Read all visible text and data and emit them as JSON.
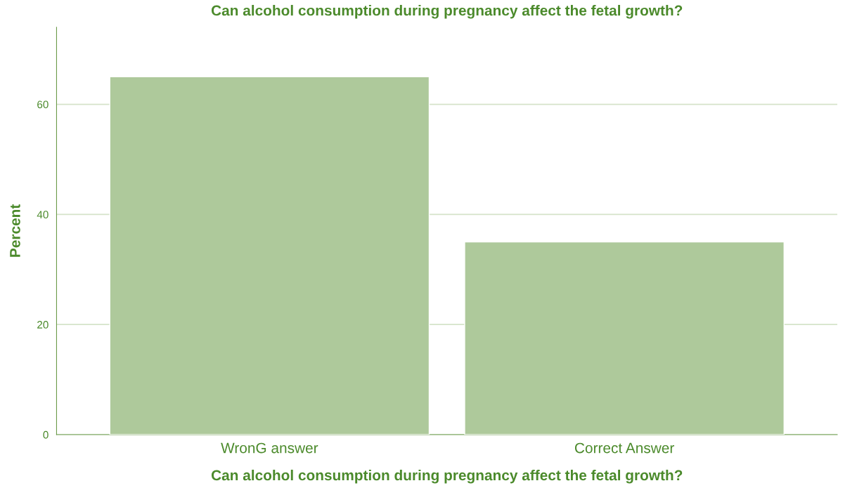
{
  "chart_data": {
    "type": "bar",
    "title": "Can alcohol consumption during pregnancy affect the fetal growth?",
    "xlabel": "Can alcohol consumption during pregnancy affect the fetal growth?",
    "ylabel": "Percent",
    "categories": [
      "WronG answer",
      "Correct Answer"
    ],
    "values": [
      65,
      35
    ],
    "color": "#aec99b",
    "ylim": [
      0,
      74
    ],
    "yticks": [
      0,
      20,
      40,
      60
    ],
    "grid": "y"
  }
}
